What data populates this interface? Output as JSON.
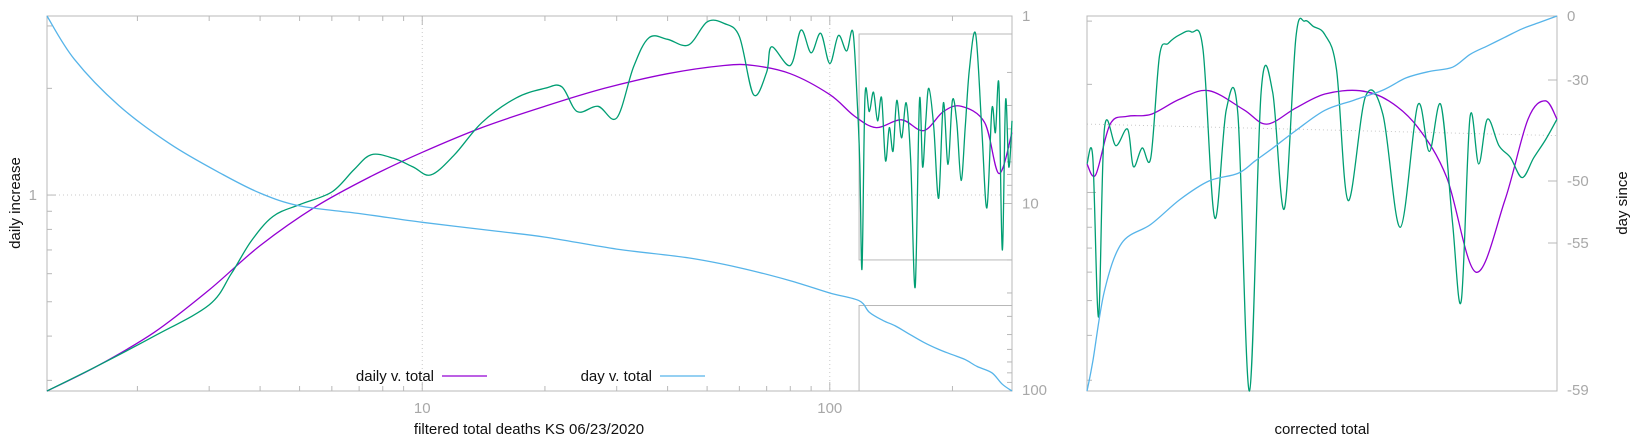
{
  "chart_data": [
    {
      "type": "line",
      "panel": "left",
      "xlabel": "filtered total deaths KS 06/23/2020",
      "ylabel": "daily increase",
      "y2label": "",
      "x_scale": "log",
      "y_scale": "log",
      "y2_scale": "log",
      "y2_reversed": true,
      "xlim": [
        1.2,
        280
      ],
      "ylim": [
        0.28,
        3.2
      ],
      "y2lim": [
        1,
        100
      ],
      "x_ticks": [
        10,
        100
      ],
      "x_tick_labels": [
        "10",
        "100"
      ],
      "y_ticks": [
        1
      ],
      "y_tick_labels": [
        "1"
      ],
      "y2_ticks": [
        1,
        10,
        100
      ],
      "y2_tick_labels": [
        "1",
        "10",
        "100"
      ],
      "grid": true,
      "legend_position": "bottom-center",
      "legend": [
        "daily v. total",
        "day v. total"
      ],
      "inset_box": {
        "xlim": [
          118,
          280
        ],
        "y2lim": [
          1,
          20
        ]
      },
      "lower_box": {
        "xlim": [
          118,
          280
        ],
        "y2lim": [
          35,
          100
        ]
      },
      "series": [
        {
          "name": "daily v. total",
          "axis": "y",
          "color": "#9400d3",
          "x": [
            1.2,
            1.6,
            2.2,
            3.0,
            4.0,
            5.5,
            7.5,
            10,
            14,
            20,
            28,
            40,
            55,
            65,
            80,
            100,
            115,
            130,
            150,
            170,
            190,
            210,
            240,
            260,
            280
          ],
          "y": [
            0.28,
            0.33,
            0.41,
            0.54,
            0.72,
            0.93,
            1.13,
            1.32,
            1.55,
            1.78,
            2.0,
            2.2,
            2.32,
            2.32,
            2.2,
            1.92,
            1.67,
            1.55,
            1.63,
            1.52,
            1.72,
            1.78,
            1.6,
            1.15,
            1.5
          ]
        },
        {
          "name": "",
          "axis": "y",
          "color": "#009e73",
          "x": [
            1.2,
            1.6,
            2.2,
            3.0,
            3.4,
            3.8,
            4.3,
            5.0,
            6.0,
            6.8,
            7.5,
            8.5,
            9.5,
            10.5,
            12,
            14,
            17,
            20,
            22,
            24,
            27,
            30,
            33,
            36,
            40,
            45,
            50,
            55,
            60,
            65,
            70,
            72,
            80,
            85,
            90,
            95,
            100,
            105,
            110,
            114,
            117,
            118.5,
            120,
            122,
            125,
            128,
            131,
            134,
            137,
            140,
            143,
            146,
            150,
            154,
            158,
            162,
            166,
            169,
            172,
            175,
            180,
            185,
            190,
            195,
            200,
            205,
            210,
            215,
            220,
            228,
            236,
            243,
            250,
            255,
            260,
            265,
            270,
            275,
            280
          ],
          "y": [
            0.28,
            0.33,
            0.4,
            0.49,
            0.6,
            0.74,
            0.87,
            0.94,
            1.02,
            1.18,
            1.3,
            1.27,
            1.2,
            1.14,
            1.3,
            1.6,
            1.88,
            2.0,
            2.02,
            1.72,
            1.78,
            1.65,
            2.3,
            2.78,
            2.75,
            2.65,
            3.08,
            3.05,
            2.8,
            1.92,
            2.22,
            2.62,
            2.32,
            2.92,
            2.52,
            2.86,
            2.35,
            2.82,
            2.55,
            2.88,
            1.75,
            1.22,
            0.62,
            1.9,
            1.72,
            1.95,
            1.62,
            1.88,
            1.25,
            1.55,
            1.33,
            1.85,
            1.45,
            1.82,
            1.25,
            0.55,
            1.85,
            1.2,
            1.62,
            2.0,
            1.55,
            0.98,
            1.82,
            1.22,
            1.85,
            1.6,
            1.1,
            1.55,
            2.25,
            2.85,
            1.55,
            0.92,
            1.75,
            1.5,
            2.05,
            0.7,
            1.85,
            1.2,
            1.62
          ]
        },
        {
          "name": "day v. total",
          "axis": "y2",
          "color": "#56b4e9",
          "x": [
            1.2,
            1.4,
            1.8,
            2.4,
            3.2,
            4.0,
            5.0,
            7.0,
            10,
            15,
            20,
            30,
            45,
            60,
            80,
            100,
            118,
            125,
            135,
            145,
            155,
            170,
            185,
            200,
            215,
            230,
            250,
            265,
            280
          ],
          "y": [
            1,
            1.7,
            3.0,
            4.8,
            6.9,
            8.8,
            10.3,
            11.3,
            12.6,
            14.0,
            15.1,
            17.5,
            19.5,
            22.0,
            25.8,
            30.0,
            33.0,
            38.0,
            42.0,
            45.0,
            49.0,
            55.0,
            60.0,
            64.0,
            68.0,
            74.0,
            80.0,
            92.0,
            100
          ]
        }
      ]
    },
    {
      "type": "line",
      "panel": "right",
      "xlabel": "corrected total",
      "ylabel": "",
      "y2label": "day since",
      "xlim": [
        118,
        280
      ],
      "y2_ticks": [
        0,
        -30,
        -50,
        -55,
        -59
      ],
      "y2_tick_labels": [
        "0",
        "-30",
        "-50",
        "-55",
        "-59"
      ],
      "y2_reversed": true,
      "grid": true,
      "series": [
        {
          "name": "",
          "axis": "y",
          "color": "#9400d3",
          "x": [
            118,
            121,
            126,
            132,
            140,
            150,
            160,
            172,
            180,
            190,
            200,
            212,
            222,
            232,
            242,
            252,
            262,
            270,
            276,
            280
          ],
          "y": [
            1.2,
            1.12,
            1.55,
            1.63,
            1.65,
            1.82,
            1.92,
            1.7,
            1.55,
            1.72,
            1.88,
            1.92,
            1.8,
            1.52,
            1.1,
            0.6,
            0.95,
            1.6,
            1.8,
            1.6
          ]
        },
        {
          "name": "",
          "axis": "y",
          "color": "#009e73",
          "x": [
            118,
            120,
            122,
            124,
            128,
            132,
            134,
            137,
            140,
            143,
            146,
            150,
            154,
            158,
            162,
            166,
            170,
            174,
            178,
            182,
            186,
            190,
            193,
            196,
            200,
            204,
            208,
            214,
            220,
            226,
            232,
            236,
            240,
            244,
            247,
            250,
            253,
            256,
            260,
            264,
            268,
            272,
            276,
            280
          ],
          "y": [
            1.2,
            1.25,
            0.45,
            1.5,
            1.35,
            1.5,
            1.18,
            1.33,
            1.25,
            2.4,
            2.6,
            2.75,
            2.8,
            2.5,
            0.85,
            1.7,
            1.65,
            0.28,
            1.9,
            1.9,
            0.9,
            2.7,
            3.0,
            2.9,
            2.75,
            2.2,
            0.95,
            1.85,
            1.65,
            0.8,
            1.75,
            1.3,
            1.75,
            0.82,
            0.5,
            1.62,
            1.2,
            1.6,
            1.35,
            1.25,
            1.1,
            1.25,
            1.4,
            1.6
          ]
        },
        {
          "name": "",
          "axis": "y2",
          "color": "#56b4e9",
          "x": [
            118,
            120,
            124,
            130,
            140,
            150,
            160,
            170,
            176,
            182,
            190,
            200,
            210,
            220,
            228,
            236,
            244,
            250,
            256,
            262,
            268,
            274,
            280
          ],
          "y2": [
            -59,
            -58.2,
            -56.3,
            -55.0,
            -53.5,
            -51.5,
            -50.0,
            -48.5,
            -46.0,
            -43.5,
            -40.0,
            -36.0,
            -34.0,
            -32.0,
            -29.0,
            -26.0,
            -24.0,
            -18.0,
            -14.0,
            -10.0,
            -6.0,
            -3.0,
            0
          ]
        }
      ]
    }
  ]
}
